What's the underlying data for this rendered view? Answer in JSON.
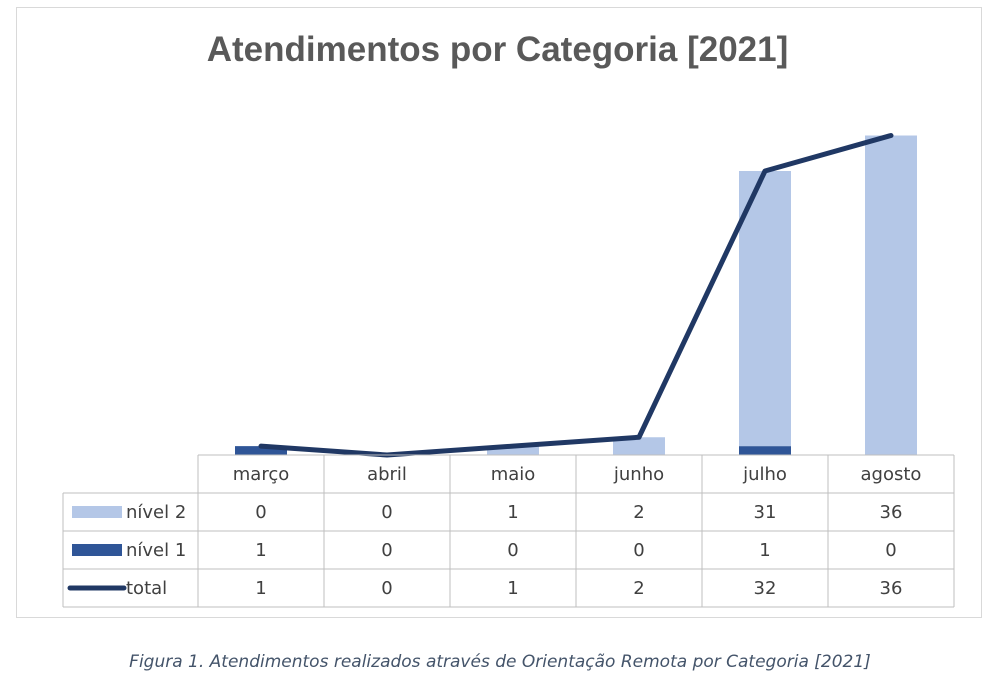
{
  "chart_data": {
    "type": "bar",
    "title": "Atendimentos por Categoria [2021]",
    "categories": [
      "março",
      "abril",
      "maio",
      "junho",
      "julho",
      "agosto"
    ],
    "series": [
      {
        "name": "nível 2",
        "kind": "bar",
        "color": "#b4c7e7",
        "values": [
          0,
          0,
          1,
          2,
          31,
          36
        ]
      },
      {
        "name": "nível 1",
        "kind": "bar",
        "color": "#2f5597",
        "values": [
          1,
          0,
          0,
          0,
          1,
          0
        ]
      },
      {
        "name": "total",
        "kind": "line",
        "color": "#203864",
        "values": [
          1,
          0,
          1,
          2,
          32,
          36
        ]
      }
    ],
    "ylim": [
      0,
      40
    ],
    "grid": false,
    "legend": "data-table"
  },
  "caption": "Figura 1. Atendimentos realizados através de Orientação Remota por Categoria [2021]"
}
